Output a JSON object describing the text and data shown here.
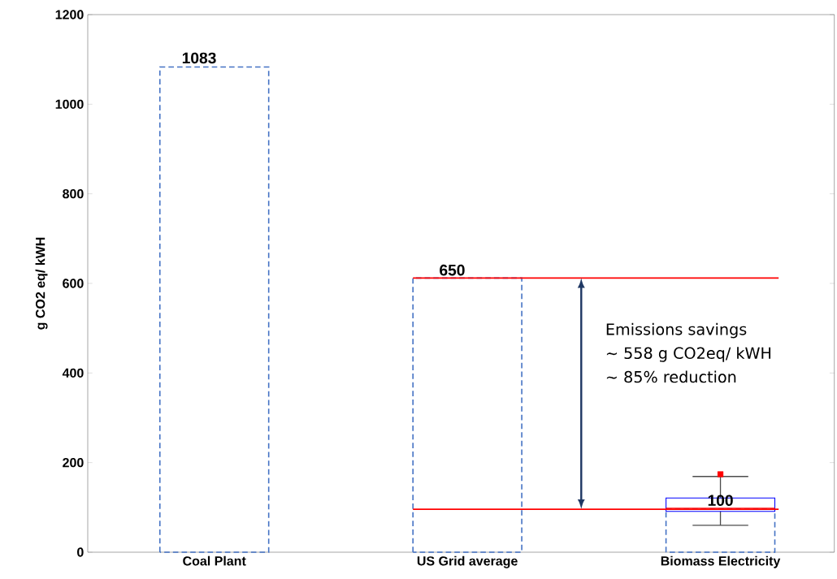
{
  "chart_data": {
    "type": "bar",
    "ylabel": "g CO2 eq/ kWH",
    "categories": [
      "Coal Plant",
      "US Grid average",
      "Biomass Electricity"
    ],
    "series": [
      {
        "color": "#4472c4",
        "line_style": "dashed",
        "values": [
          1083,
          612,
          96
        ],
        "value_labels": [
          "1083",
          null,
          null
        ]
      },
      {
        "type": "box",
        "color": "#0000ff",
        "boxes": [
          null,
          null,
          {
            "low": 60,
            "q1": 91,
            "median": 98,
            "q3": 121,
            "high": 169,
            "outliers": [
              174
            ]
          }
        ]
      }
    ],
    "ylim": [
      0,
      1200
    ],
    "yticks": [
      0,
      200,
      400,
      600,
      800,
      1000,
      1200
    ],
    "ref_lines": [
      {
        "axis": "y",
        "value": 612,
        "color": "#ff0000"
      },
      {
        "axis": "y",
        "value": 96,
        "color": "#ff0000"
      }
    ],
    "annotations": [
      {
        "text": "650",
        "x": "US Grid average",
        "y": 612
      },
      {
        "text": "100",
        "x": "Biomass Electricity",
        "y": 98
      },
      "Emissions savings",
      "~ 558 g CO2eq/ kWH",
      "~ 85% reduction"
    ]
  }
}
